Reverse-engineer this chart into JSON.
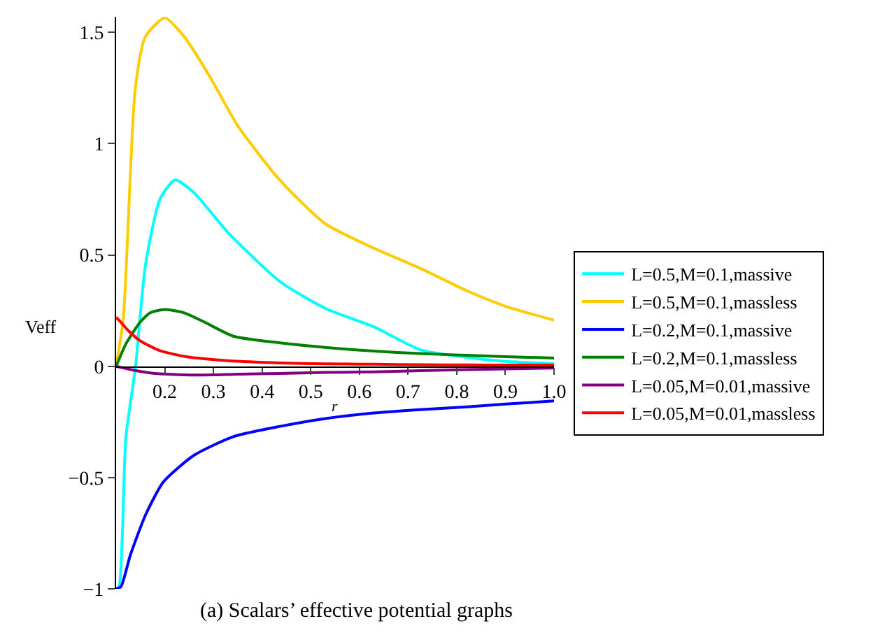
{
  "chart_data": {
    "type": "line",
    "title": "(a) Scalars’ effective potential graphs",
    "xlabel": "r",
    "ylabel": "Veff",
    "xlim": [
      0.1,
      1.0
    ],
    "xticks": [
      0.2,
      0.3,
      0.4,
      0.5,
      0.6,
      0.7,
      0.8,
      0.9,
      {
        "value": 1.0,
        "label": "1.0"
      }
    ],
    "ylim": [
      -1,
      1.57
    ],
    "yticks": [
      {
        "value": -1,
        "label": "−1"
      },
      {
        "value": -0.5,
        "label": "−0.5"
      },
      0,
      0.5,
      1,
      1.5
    ],
    "legend": "right",
    "marker": "none",
    "line_style": "solid",
    "series": [
      {
        "name": "L=0.5,M=0.1,massive",
        "color": "#00ffff",
        "x": [
          0.1,
          0.106,
          0.12,
          0.14,
          0.16,
          0.19,
          0.221,
          0.26,
          0.33,
          0.437,
          0.53,
          0.63,
          0.725,
          0.82,
          0.9,
          1.0
        ],
        "values": [
          -1,
          -0.99,
          -0.32,
          0,
          0.45,
          0.75,
          0.837,
          0.78,
          0.6,
          0.38,
          0.26,
          0.177,
          0.074,
          0.04,
          0.022,
          0.012
        ]
      },
      {
        "name": "L=0.5,M=0.1,massless",
        "color": "#ffcc00",
        "x": [
          0.1,
          0.115,
          0.139,
          0.16,
          0.2,
          0.24,
          0.293,
          0.35,
          0.437,
          0.53,
          0.63,
          0.725,
          0.82,
          0.9,
          1.0
        ],
        "values": [
          0,
          0.22,
          1.24,
          1.48,
          1.565,
          1.48,
          1.3,
          1.08,
          0.835,
          0.64,
          0.53,
          0.44,
          0.34,
          0.27,
          0.207
        ]
      },
      {
        "name": "L=0.2,M=0.1,massive",
        "color": "#0000ff",
        "x": [
          0.1,
          0.11,
          0.129,
          0.16,
          0.197,
          0.26,
          0.341,
          0.437,
          0.533,
          0.63,
          0.725,
          0.822,
          0.9,
          1.0
        ],
        "values": [
          -1,
          -0.99,
          -0.85,
          -0.67,
          -0.52,
          -0.4,
          -0.316,
          -0.27,
          -0.234,
          -0.21,
          -0.195,
          -0.182,
          -0.17,
          -0.156
        ]
      },
      {
        "name": "L=0.2,M=0.1,massless",
        "color": "#008000",
        "x": [
          0.1,
          0.12,
          0.149,
          0.17,
          0.2,
          0.24,
          0.28,
          0.341,
          0.437,
          0.533,
          0.63,
          0.725,
          0.82,
          0.9,
          1.0
        ],
        "values": [
          0,
          0.1,
          0.197,
          0.24,
          0.255,
          0.24,
          0.2,
          0.135,
          0.105,
          0.084,
          0.068,
          0.057,
          0.049,
          0.043,
          0.037
        ]
      },
      {
        "name": "L=0.05,M=0.01,massive",
        "color": "#800080",
        "x": [
          0.1,
          0.13,
          0.17,
          0.22,
          0.3,
          0.341,
          0.437,
          0.53,
          0.63,
          0.725,
          0.82,
          0.9,
          1.0
        ],
        "values": [
          0,
          -0.015,
          -0.03,
          -0.037,
          -0.039,
          -0.036,
          -0.032,
          -0.028,
          -0.025,
          -0.02,
          -0.015,
          -0.012,
          -0.008
        ]
      },
      {
        "name": "L=0.05,M=0.01,massless",
        "color": "#ff0000",
        "x": [
          0.1,
          0.106,
          0.125,
          0.149,
          0.19,
          0.244,
          0.33,
          0.437,
          0.53,
          0.63,
          0.725,
          0.82,
          0.9,
          1.0
        ],
        "values": [
          0.22,
          0.207,
          0.16,
          0.115,
          0.07,
          0.043,
          0.025,
          0.015,
          0.011,
          0.009,
          0.007,
          0.006,
          0.005,
          0.005
        ]
      }
    ]
  }
}
